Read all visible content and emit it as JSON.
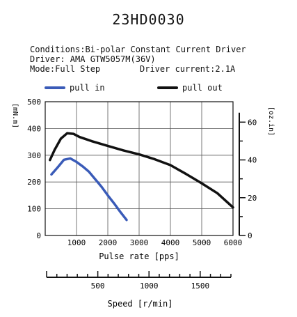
{
  "chart_data": {
    "type": "line",
    "title": "23HD0030",
    "conditions": [
      "Conditions:Bi-polar Constant Current Driver",
      "Driver: AMA GTW5057M(36V)"
    ],
    "mode_label": "Mode:Full Step",
    "driver_current_label": "Driver current:2.1A",
    "xlabel": "Pulse rate [pps]",
    "ylabel_left": "[mN.m]",
    "ylabel_right": "[oz.in]",
    "secondary_xlabel": "Speed [r/min]",
    "xlim": [
      0,
      6000
    ],
    "ylim": [
      0,
      500
    ],
    "x_ticks": [
      1000,
      2000,
      3000,
      4000,
      5000,
      6000
    ],
    "y_ticks_left": [
      0,
      100,
      200,
      300,
      400,
      500
    ],
    "y_ticks_right": [
      0,
      20,
      40,
      60
    ],
    "speed_ticks": [
      500,
      1000,
      1500
    ],
    "speed_lim": [
      0,
      1800
    ],
    "grid": true,
    "legend_position": "top",
    "series": [
      {
        "name": "pull in",
        "color": "#3a5bb8",
        "x": [
          200,
          400,
          600,
          800,
          1000,
          1200,
          1400,
          1600,
          1800,
          2000,
          2200,
          2400,
          2600
        ],
        "y": [
          228,
          255,
          283,
          288,
          275,
          258,
          238,
          210,
          182,
          150,
          120,
          88,
          58
        ]
      },
      {
        "name": "pull out",
        "color": "#111111",
        "x": [
          150,
          300,
          500,
          700,
          900,
          1100,
          1500,
          2000,
          2500,
          3000,
          3500,
          4000,
          4500,
          5000,
          5500,
          6000
        ],
        "y": [
          282,
          320,
          362,
          382,
          380,
          368,
          352,
          335,
          318,
          303,
          285,
          263,
          230,
          195,
          158,
          105
        ]
      }
    ]
  }
}
